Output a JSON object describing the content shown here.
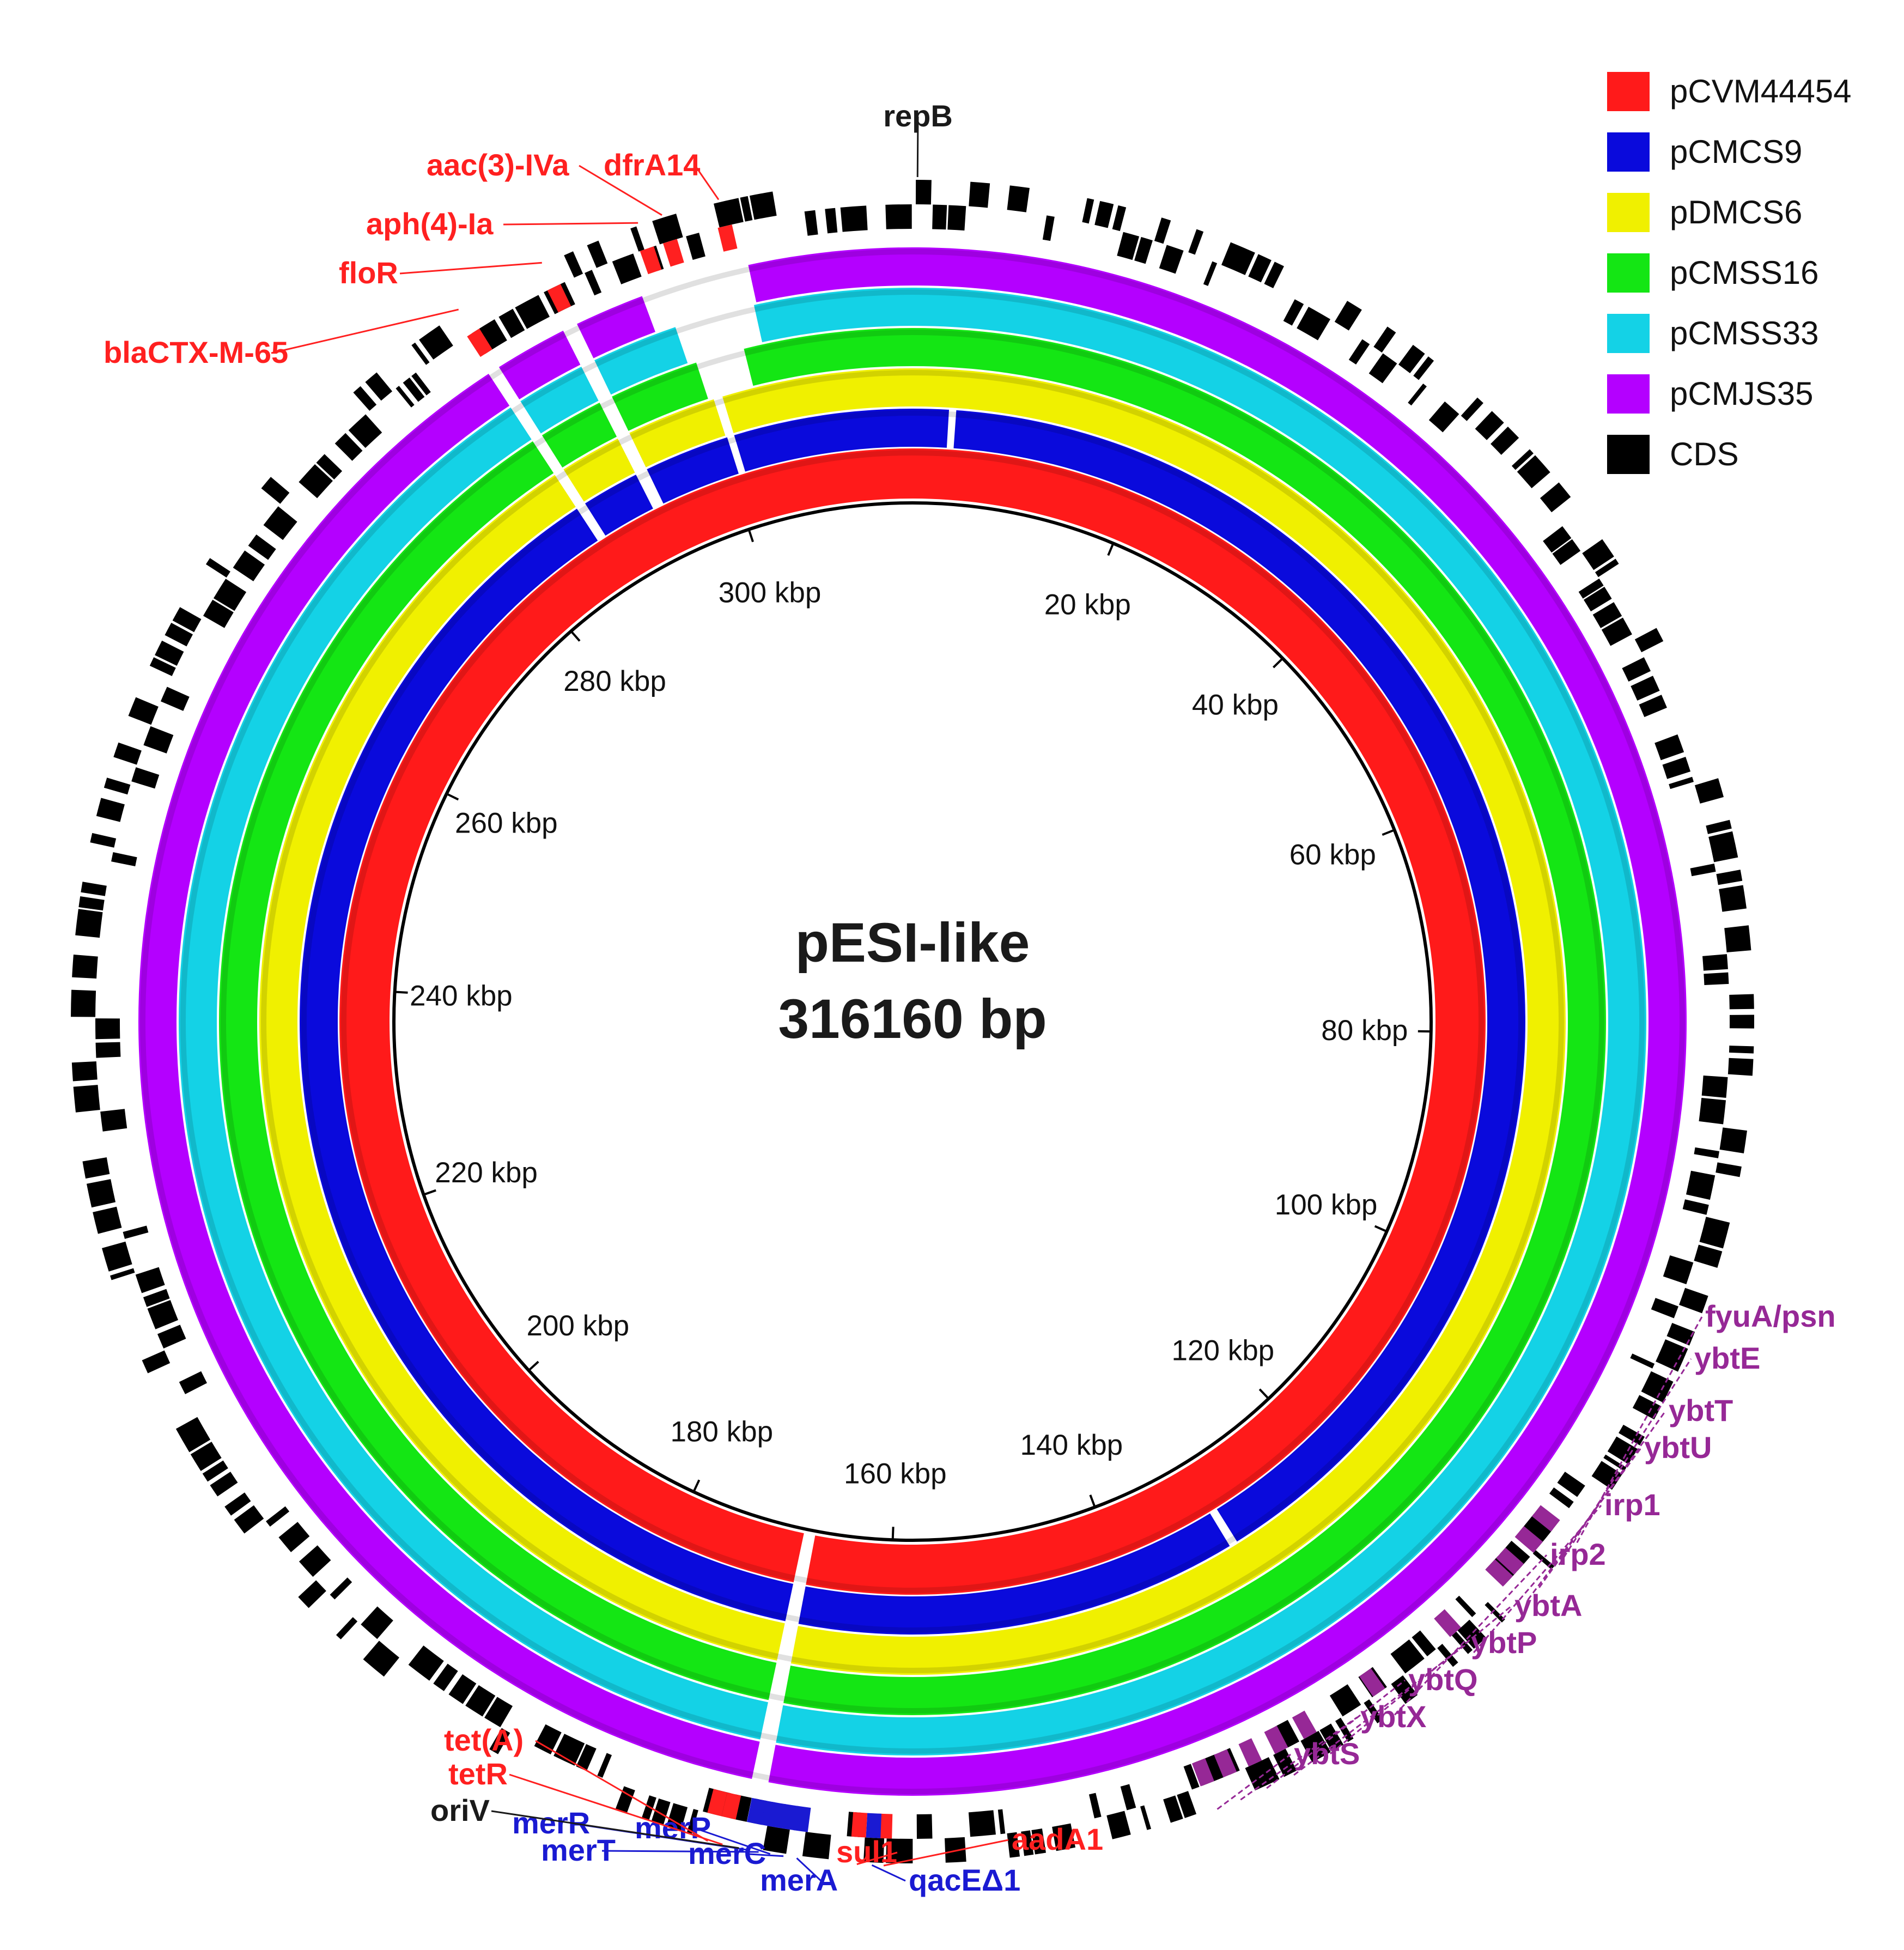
{
  "plasmid": {
    "name": "pESI-like",
    "size_label": "316160 bp",
    "length_bp": 316160
  },
  "legend": [
    {
      "label": "pCVM44454",
      "color": "#ff1a1a"
    },
    {
      "label": "pCMCS9",
      "color": "#0a0adc"
    },
    {
      "label": "pDMCS6",
      "color": "#f0f000"
    },
    {
      "label": "pCMSS16",
      "color": "#14e614"
    },
    {
      "label": "pCMSS33",
      "color": "#14d2e6"
    },
    {
      "label": "pCMJS35",
      "color": "#b400ff"
    },
    {
      "label": "CDS",
      "color": "#000000"
    }
  ],
  "ticks": [
    {
      "kbp": 20,
      "label": "20 kbp"
    },
    {
      "kbp": 40,
      "label": "40 kbp"
    },
    {
      "kbp": 60,
      "label": "60 kbp"
    },
    {
      "kbp": 80,
      "label": "80 kbp"
    },
    {
      "kbp": 100,
      "label": "100 kbp"
    },
    {
      "kbp": 120,
      "label": "120 kbp"
    },
    {
      "kbp": 140,
      "label": "140 kbp"
    },
    {
      "kbp": 160,
      "label": "160 kbp"
    },
    {
      "kbp": 180,
      "label": "180 kbp"
    },
    {
      "kbp": 200,
      "label": "200 kbp"
    },
    {
      "kbp": 220,
      "label": "220 kbp"
    },
    {
      "kbp": 240,
      "label": "240 kbp"
    },
    {
      "kbp": 260,
      "label": "260 kbp"
    },
    {
      "kbp": 280,
      "label": "280 kbp"
    },
    {
      "kbp": 300,
      "label": "300 kbp"
    }
  ],
  "gene_groups": {
    "resistance": {
      "color": "#ff2020"
    },
    "mercury": {
      "color": "#1a1ad2"
    },
    "yersiniabactin": {
      "color": "#962896"
    },
    "replication": {
      "color": "#1a1a1a"
    }
  },
  "genes": [
    {
      "name": "repB",
      "group": "replication",
      "kbp": 0.3
    },
    {
      "name": "dfrA14",
      "group": "resistance",
      "kbp": 304.5
    },
    {
      "name": "aac(3)-IVa",
      "group": "resistance",
      "kbp": 301.0
    },
    {
      "name": "aph(4)-Ia",
      "group": "resistance",
      "kbp": 299.5
    },
    {
      "name": "floR",
      "group": "resistance",
      "kbp": 293.3
    },
    {
      "name": "blaCTX-M-65",
      "group": "resistance",
      "kbp": 287.6
    },
    {
      "name": "fyuA/psn",
      "group": "yersiniabactin",
      "kbp": 112.5
    },
    {
      "name": "ybtE",
      "group": "yersiniabactin",
      "kbp": 114.2
    },
    {
      "name": "ybtT",
      "group": "yersiniabactin",
      "kbp": 116.0
    },
    {
      "name": "ybtU",
      "group": "yersiniabactin",
      "kbp": 117.0
    },
    {
      "name": "irp1",
      "group": "yersiniabactin",
      "kbp": 121.5
    },
    {
      "name": "irp2",
      "group": "yersiniabactin",
      "kbp": 127.5
    },
    {
      "name": "ybtA",
      "group": "yersiniabactin",
      "kbp": 132.5
    },
    {
      "name": "ybtP",
      "group": "yersiniabactin",
      "kbp": 134.5
    },
    {
      "name": "ybtQ",
      "group": "yersiniabactin",
      "kbp": 136.3
    },
    {
      "name": "ybtX",
      "group": "yersiniabactin",
      "kbp": 138.0
    },
    {
      "name": "ybtS",
      "group": "yersiniabactin",
      "kbp": 139.5
    },
    {
      "name": "aadA1",
      "group": "resistance",
      "kbp": 159.8
    },
    {
      "name": "qacEΔ1",
      "group": "mercury",
      "kbp": 160.5
    },
    {
      "name": "sul1",
      "group": "resistance",
      "kbp": 161.4
    },
    {
      "name": "merA",
      "group": "mercury",
      "kbp": 165.0
    },
    {
      "name": "merC",
      "group": "mercury",
      "kbp": 165.8
    },
    {
      "name": "merP",
      "group": "mercury",
      "kbp": 166.6
    },
    {
      "name": "merT",
      "group": "mercury",
      "kbp": 167.3
    },
    {
      "name": "merR",
      "group": "mercury",
      "kbp": 167.9
    },
    {
      "name": "oriV",
      "group": "replication",
      "kbp": 168.5
    },
    {
      "name": "tetR",
      "group": "resistance",
      "kbp": 169.5
    },
    {
      "name": "tet(A)",
      "group": "resistance",
      "kbp": 170.4
    }
  ]
}
